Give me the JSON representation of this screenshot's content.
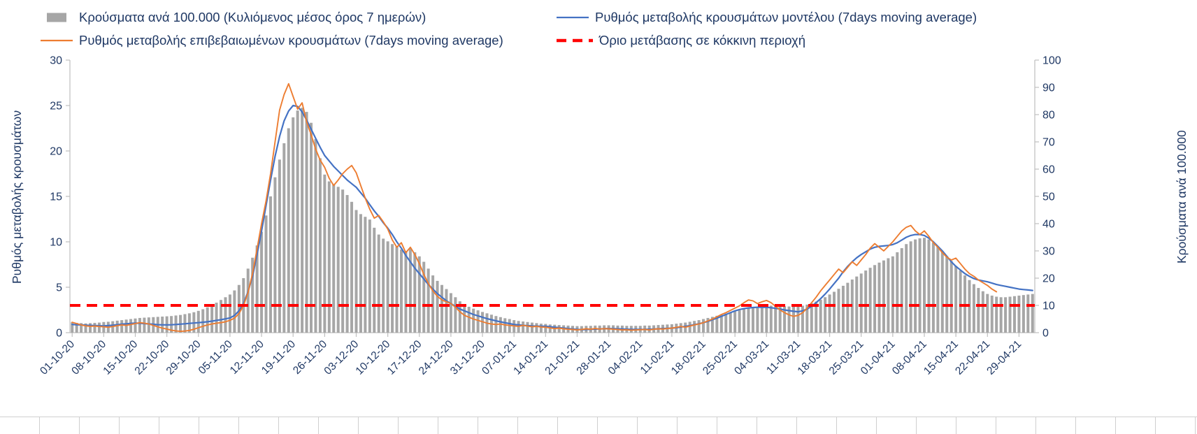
{
  "chart_data": {
    "type": "combo(bar+line)",
    "grid": false,
    "legend_position": "top",
    "style": {
      "axis_color": "#bfbfbf",
      "text_color": "#1f3864",
      "background": "#ffffff"
    },
    "threshold_label": "Όριο μετάβασης σε κόκκινη περιοχή",
    "left_axis": {
      "title": "Ρυθμός μεταβολής κρουσμάτων",
      "min": 0,
      "max": 30,
      "step": 5,
      "ticks": [
        0,
        5,
        10,
        15,
        20,
        25,
        30
      ]
    },
    "right_axis": {
      "title": "Κρούσματα ανά 100.000",
      "min": 0,
      "max": 100,
      "step": 10,
      "ticks": [
        0,
        10,
        20,
        30,
        40,
        50,
        60,
        70,
        80,
        90,
        100
      ]
    },
    "x": {
      "interval_days": 1,
      "tick_every": 7,
      "tick_labels": [
        "01-10-20",
        "08-10-20",
        "15-10-20",
        "22-10-20",
        "29-10-20",
        "05-11-20",
        "12-11-20",
        "19-11-20",
        "26-11-20",
        "03-12-20",
        "10-12-20",
        "17-12-20",
        "24-12-20",
        "31-12-20",
        "07-01-21",
        "14-01-21",
        "21-01-21",
        "28-01-21",
        "04-02-21",
        "11-02-21",
        "18-02-21",
        "25-02-21",
        "04-03-21",
        "11-03-21",
        "18-03-21",
        "25-03-21",
        "01-04-21",
        "08-04-21",
        "15-04-21",
        "22-04-21",
        "29-04-21"
      ]
    },
    "series": [
      {
        "name": "Κρούσματα ανά 100.000 (Κυλιόμενος μέσος όρος 7 ημερών)",
        "type": "bar",
        "axis": "right",
        "color": "#a6a6a6",
        "values": [
          3.8,
          3.6,
          3.5,
          3.4,
          3.5,
          3.6,
          3.7,
          3.9,
          4.0,
          4.2,
          4.4,
          4.6,
          4.8,
          5.0,
          5.2,
          5.4,
          5.5,
          5.6,
          5.7,
          5.8,
          5.9,
          6.0,
          6.1,
          6.3,
          6.5,
          6.8,
          7.1,
          7.5,
          8.0,
          8.6,
          9.3,
          10.1,
          11.0,
          12.0,
          13.0,
          14.0,
          15.5,
          17.5,
          20.0,
          23.5,
          27.5,
          32.0,
          37.0,
          43.0,
          50.0,
          57.0,
          63.5,
          69.5,
          75.0,
          79.0,
          81.5,
          82.5,
          81.0,
          77.0,
          71.0,
          64.0,
          58.0,
          55.5,
          54.5,
          53.5,
          52.5,
          50.5,
          48.0,
          45.0,
          43.5,
          42.5,
          41.5,
          38.5,
          36.0,
          34.5,
          33.5,
          32.5,
          31.5,
          30.5,
          30.0,
          31.0,
          29.5,
          28.0,
          26.0,
          23.5,
          21.0,
          19.0,
          17.5,
          16.0,
          14.5,
          13.0,
          11.5,
          10.5,
          9.5,
          8.8,
          8.2,
          7.6,
          7.1,
          6.6,
          6.1,
          5.7,
          5.3,
          5.0,
          4.6,
          4.3,
          4.1,
          3.9,
          3.7,
          3.5,
          3.3,
          3.2,
          3.0,
          2.9,
          2.8,
          2.7,
          2.6,
          2.5,
          2.4,
          2.4,
          2.5,
          2.5,
          2.6,
          2.6,
          2.7,
          2.7,
          2.7,
          2.6,
          2.6,
          2.5,
          2.5,
          2.5,
          2.5,
          2.6,
          2.6,
          2.7,
          2.8,
          2.9,
          3.0,
          3.1,
          3.3,
          3.5,
          3.7,
          4.0,
          4.3,
          4.6,
          5.0,
          5.4,
          5.8,
          6.2,
          6.6,
          7.0,
          7.4,
          7.8,
          8.2,
          8.6,
          9.0,
          9.3,
          9.5,
          9.7,
          9.8,
          9.9,
          9.9,
          9.8,
          9.7,
          9.6,
          9.6,
          9.7,
          9.9,
          10.3,
          10.8,
          11.4,
          12.1,
          13.0,
          14.0,
          15.0,
          16.1,
          17.2,
          18.3,
          19.5,
          20.6,
          21.7,
          22.8,
          23.8,
          24.8,
          25.7,
          26.5,
          27.3,
          28.0,
          29.5,
          31.0,
          32.5,
          33.5,
          34.2,
          34.6,
          34.8,
          34.2,
          33.0,
          31.5,
          29.8,
          28.0,
          26.3,
          24.5,
          22.8,
          21.0,
          19.3,
          17.8,
          16.4,
          15.2,
          14.2,
          13.6,
          13.2,
          13.0,
          13.0,
          13.2,
          13.4,
          13.6,
          13.8,
          14.0,
          14.2
        ]
      },
      {
        "name": "Ρυθμός μεταβολής κρουσμάτων μοντέλου (7days moving average)",
        "type": "line",
        "axis": "left",
        "color": "#4472c4",
        "values": [
          0.9,
          0.88,
          0.85,
          0.82,
          0.8,
          0.78,
          0.76,
          0.75,
          0.78,
          0.82,
          0.88,
          0.93,
          0.98,
          1.02,
          1.05,
          1.04,
          1.0,
          0.96,
          0.92,
          0.88,
          0.86,
          0.85,
          0.87,
          0.9,
          0.94,
          0.98,
          1.02,
          1.06,
          1.1,
          1.15,
          1.2,
          1.27,
          1.35,
          1.43,
          1.52,
          1.62,
          1.9,
          2.4,
          3.2,
          4.5,
          6.2,
          8.6,
          11.2,
          14.0,
          16.8,
          19.4,
          21.6,
          23.3,
          24.4,
          25.0,
          24.9,
          24.3,
          23.4,
          22.4,
          21.4,
          20.4,
          19.5,
          18.9,
          18.3,
          17.8,
          17.3,
          16.8,
          16.4,
          16.0,
          15.4,
          14.8,
          14.1,
          13.4,
          12.8,
          12.1,
          11.5,
          10.8,
          10.0,
          9.3,
          8.5,
          7.8,
          7.1,
          6.5,
          5.9,
          5.3,
          4.8,
          4.3,
          3.9,
          3.5,
          3.2,
          2.9,
          2.6,
          2.4,
          2.2,
          2.0,
          1.85,
          1.7,
          1.55,
          1.42,
          1.3,
          1.19,
          1.09,
          1.0,
          0.9,
          0.85,
          0.8,
          0.77,
          0.74,
          0.72,
          0.71,
          0.7,
          0.65,
          0.6,
          0.55,
          0.5,
          0.45,
          0.4,
          0.35,
          0.34,
          0.35,
          0.37,
          0.39,
          0.41,
          0.43,
          0.45,
          0.44,
          0.42,
          0.4,
          0.38,
          0.36,
          0.35,
          0.35,
          0.36,
          0.38,
          0.4,
          0.42,
          0.45,
          0.48,
          0.5,
          0.55,
          0.62,
          0.7,
          0.78,
          0.88,
          0.98,
          1.1,
          1.25,
          1.42,
          1.6,
          1.8,
          2.0,
          2.2,
          2.4,
          2.55,
          2.65,
          2.72,
          2.77,
          2.8,
          2.8,
          2.8,
          2.75,
          2.68,
          2.6,
          2.5,
          2.42,
          2.35,
          2.3,
          2.4,
          2.6,
          2.9,
          3.3,
          3.75,
          4.25,
          4.8,
          5.4,
          6.0,
          6.7,
          7.3,
          7.8,
          8.25,
          8.6,
          8.9,
          9.2,
          9.4,
          9.5,
          9.55,
          9.6,
          9.7,
          9.9,
          10.2,
          10.5,
          10.7,
          10.8,
          10.8,
          10.7,
          10.4,
          10.0,
          9.5,
          9.0,
          8.4,
          7.8,
          7.3,
          6.9,
          6.5,
          6.2,
          5.95,
          5.8,
          5.7,
          5.6,
          5.45,
          5.3,
          5.2,
          5.1,
          5.0,
          4.9,
          4.8,
          4.75,
          4.7,
          4.65
        ]
      },
      {
        "name": "Ρυθμός μεταβολής επιβεβαιωμένων κρουσμάτων (7days moving average)",
        "type": "line",
        "axis": "left",
        "color": "#ed7d31",
        "values": [
          1.15,
          1.0,
          0.85,
          0.75,
          0.7,
          0.72,
          0.68,
          0.65,
          0.6,
          0.68,
          0.78,
          0.85,
          0.8,
          0.9,
          1.0,
          1.1,
          1.05,
          0.95,
          0.8,
          0.65,
          0.5,
          0.4,
          0.28,
          0.2,
          0.15,
          0.18,
          0.25,
          0.38,
          0.55,
          0.7,
          0.85,
          0.95,
          1.05,
          1.1,
          1.2,
          1.35,
          1.6,
          2.1,
          3.0,
          4.4,
          6.5,
          9.2,
          12.0,
          14.5,
          17.5,
          21.0,
          24.5,
          26.2,
          27.4,
          26.0,
          24.6,
          25.3,
          23.2,
          21.8,
          20.2,
          19.0,
          18.2,
          17.0,
          16.2,
          16.8,
          17.5,
          18.0,
          18.4,
          17.6,
          16.2,
          14.8,
          13.6,
          12.6,
          12.9,
          12.2,
          11.4,
          10.2,
          9.4,
          9.9,
          8.8,
          9.4,
          8.6,
          7.6,
          6.4,
          5.4,
          4.6,
          4.0,
          3.6,
          3.4,
          3.2,
          2.8,
          2.3,
          1.9,
          1.7,
          1.5,
          1.35,
          1.2,
          1.05,
          0.95,
          0.9,
          0.95,
          0.85,
          0.8,
          0.75,
          0.7,
          0.8,
          0.72,
          0.65,
          0.7,
          0.62,
          0.6,
          0.52,
          0.45,
          0.5,
          0.42,
          0.38,
          0.35,
          0.3,
          0.35,
          0.42,
          0.38,
          0.45,
          0.4,
          0.44,
          0.42,
          0.38,
          0.35,
          0.3,
          0.32,
          0.28,
          0.3,
          0.32,
          0.35,
          0.3,
          0.38,
          0.42,
          0.4,
          0.45,
          0.5,
          0.58,
          0.68,
          0.6,
          0.72,
          0.85,
          0.95,
          1.1,
          1.3,
          1.5,
          1.75,
          2.0,
          2.2,
          2.45,
          2.7,
          2.95,
          3.3,
          3.6,
          3.5,
          3.2,
          3.4,
          3.55,
          3.3,
          2.9,
          2.5,
          2.2,
          1.95,
          1.8,
          1.9,
          2.2,
          2.7,
          3.3,
          3.9,
          4.6,
          5.2,
          5.8,
          6.4,
          7.0,
          6.6,
          7.2,
          7.8,
          7.4,
          8.0,
          8.6,
          9.3,
          9.8,
          9.4,
          9.0,
          9.5,
          10.0,
          10.6,
          11.2,
          11.6,
          11.8,
          11.2,
          10.8,
          11.2,
          10.6,
          9.9,
          9.4,
          8.8,
          8.3,
          8.0,
          8.2,
          7.6,
          7.0,
          6.5,
          6.2,
          5.8,
          5.5,
          5.2,
          4.8,
          4.5,
          null,
          null,
          null,
          null,
          null,
          null,
          null,
          null
        ]
      },
      {
        "name": "Όριο μετάβασης σε κόκκινη περιοχή",
        "type": "threshold",
        "axis": "left",
        "color": "#ff0000",
        "value": 3
      }
    ]
  }
}
